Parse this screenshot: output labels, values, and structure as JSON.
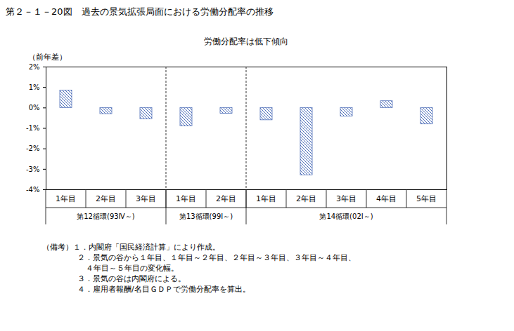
{
  "chart_data": {
    "type": "bar",
    "title": "第２－１－20図　過去の景気拡張局面における労働分配率の推移",
    "subtitle": "労働分配率は低下傾向",
    "y_label": "（前年差）",
    "groups": [
      {
        "label": "第12循環(93Ⅳ～)",
        "categories": [
          "1年目",
          "2年目",
          "3年目"
        ],
        "values": [
          0.85,
          -0.3,
          -0.55
        ]
      },
      {
        "label": "第13循環(99Ⅰ～)",
        "categories": [
          "1年目",
          "2年目"
        ],
        "values": [
          -0.9,
          -0.28
        ]
      },
      {
        "label": "第14循環(02Ⅰ～)",
        "categories": [
          "1年目",
          "2年目",
          "3年目",
          "4年目",
          "5年目"
        ],
        "values": [
          -0.6,
          -3.3,
          -0.42,
          0.33,
          -0.8
        ]
      }
    ],
    "color": "#4f6fb8",
    "ylim": [
      -4,
      2
    ],
    "yticks": [
      {
        "value": 2,
        "label": "2%"
      },
      {
        "value": 1,
        "label": "1%"
      },
      {
        "value": 0,
        "label": "0%"
      },
      {
        "value": -1,
        "label": "-1%"
      },
      {
        "value": -2,
        "label": "-2%"
      },
      {
        "value": -3,
        "label": "-3%"
      },
      {
        "value": -4,
        "label": "-4%"
      }
    ],
    "notes": [
      "（備考）１．内閣府「国民経済計算」により作成。",
      "２．景気の谷から１年目、１年目～２年目、２年目～３年目、３年目～４年目、",
      "４年目～５年目の変化幅。",
      "３．景気の谷は内閣府による。",
      "４．雇用者報酬/名目ＧＤＰで労働分配率を算出。"
    ]
  }
}
